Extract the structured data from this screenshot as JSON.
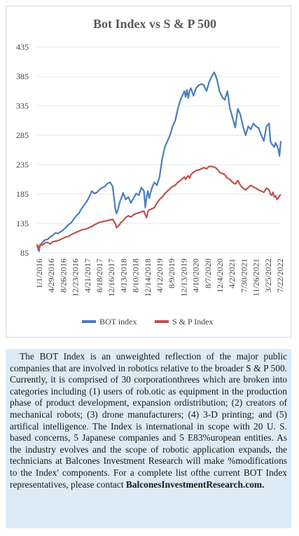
{
  "chart_data": {
    "type": "line",
    "title": "Bot Index vs S & P 500",
    "xlabel": "",
    "ylabel": "",
    "ylim": [
      85,
      435
    ],
    "y_ticks": [
      85,
      135,
      185,
      235,
      285,
      335,
      385,
      435
    ],
    "x_ticks": [
      "1/1/2016",
      "4/29/2016",
      "8/26/2016",
      "12/23/2016",
      "4/21/2017",
      "8/18/2017",
      "12/16/2017",
      "4/13/2018",
      "8/10/2018",
      "12/14/2018",
      "4/12/2019",
      "8/9/2019",
      "12/13/2019",
      "4/10/2020",
      "8/7/2020",
      "12/4/2020",
      "4/2/2021",
      "7/30/2021",
      "11/26/2021",
      "3/25/2022",
      "7/22/2022"
    ],
    "grid": "horizontal",
    "legend_position": "bottom",
    "x": [
      0,
      2,
      3,
      4,
      6,
      8,
      12,
      16,
      20,
      24,
      28,
      32,
      36,
      40,
      44,
      48,
      52,
      56,
      60,
      64,
      68,
      72,
      76,
      80,
      84,
      88,
      92,
      96,
      100,
      104,
      108,
      112,
      116,
      120,
      122,
      124,
      126,
      128,
      130,
      132,
      136,
      140,
      144,
      148,
      152,
      156,
      160,
      164,
      166,
      168,
      170,
      172,
      176,
      180,
      184,
      188,
      192,
      196,
      200,
      204,
      208,
      212,
      216,
      220,
      224,
      226,
      228,
      230,
      232,
      234,
      236,
      240,
      244,
      248,
      252,
      256,
      260,
      264,
      268,
      272,
      276,
      280,
      284,
      288,
      292,
      296,
      300,
      304,
      308,
      312,
      316,
      320,
      324,
      328,
      332,
      336,
      340,
      344,
      348,
      352,
      356,
      358,
      360,
      362,
      364,
      366,
      368,
      370,
      372,
      374
    ],
    "series": [
      {
        "name": "BOT index",
        "color": "#4a7ebb",
        "values": [
          97,
          90,
          88,
          95,
          100,
          103,
          107,
          108,
          112,
          115,
          119,
          118,
          121,
          124,
          128,
          133,
          136,
          142,
          148,
          152,
          160,
          166,
          172,
          180,
          190,
          186,
          188,
          193,
          196,
          198,
          203,
          205,
          198,
          160,
          152,
          158,
          168,
          175,
          180,
          187,
          176,
          180,
          170,
          178,
          186,
          183,
          196,
          190,
          162,
          180,
          190,
          178,
          195,
          205,
          200,
          215,
          245,
          265,
          275,
          285,
          300,
          310,
          330,
          345,
          355,
          360,
          350,
          362,
          348,
          360,
          365,
          352,
          365,
          370,
          372,
          370,
          360,
          375,
          385,
          392,
          380,
          360,
          350,
          345,
          360,
          330,
          315,
          298,
          330,
          320,
          300,
          285,
          300,
          295,
          305,
          300,
          297,
          285,
          275,
          300,
          305,
          275,
          270,
          268,
          265,
          272,
          268,
          262,
          250,
          275
        ]
      },
      {
        "name": "S & P Index",
        "color": "#c0504d",
        "values": [
          100,
          92,
          95,
          98,
          100,
          98,
          102,
          103,
          100,
          104,
          105,
          106,
          108,
          110,
          112,
          113,
          116,
          118,
          120,
          122,
          124,
          125,
          126,
          128,
          130,
          133,
          135,
          137,
          138,
          139,
          140,
          141,
          142,
          135,
          128,
          130,
          132,
          136,
          138,
          140,
          145,
          148,
          146,
          150,
          152,
          153,
          155,
          156,
          150,
          145,
          155,
          158,
          160,
          162,
          170,
          176,
          180,
          186,
          190,
          194,
          198,
          200,
          205,
          208,
          212,
          214,
          210,
          214,
          216,
          212,
          218,
          222,
          225,
          226,
          228,
          230,
          228,
          232,
          232,
          231,
          228,
          222,
          220,
          218,
          212,
          210,
          205,
          202,
          208,
          200,
          195,
          192,
          196,
          200,
          197,
          195,
          192,
          190,
          188,
          195,
          192,
          185,
          183,
          188,
          180,
          182,
          176,
          178,
          182,
          184
        ]
      }
    ]
  },
  "legend": {
    "bot_label": "BOT index",
    "sp_label": "S & P Index"
  },
  "description": {
    "text": "The BOT Index is an unweighted reflection of the major public companies that are involved in robotics relative to the broader S & P 500. Currently, it is comprised of 30 corporationthrees which are broken into categories including (1) users of rob.otic as equipment in the production phase of product development, expansion ordistribution; (2) creators of mechanical robots; (3) drone manufacturers; (4) 3-D printing; and (5) artifical intelligence. The Index is international in scope with 20 U. S. based concerns, 5 Japanese companies and 5 E83%uropean entities. As the industry evolves and the scope of robotic application expands, the technicians at Balcones Investment Research will make %modifications to the Index' components. For a  complete list ofthe current BOT Index representatives, please contact ",
    "link": "BalconesInvestmentResearch.com."
  }
}
